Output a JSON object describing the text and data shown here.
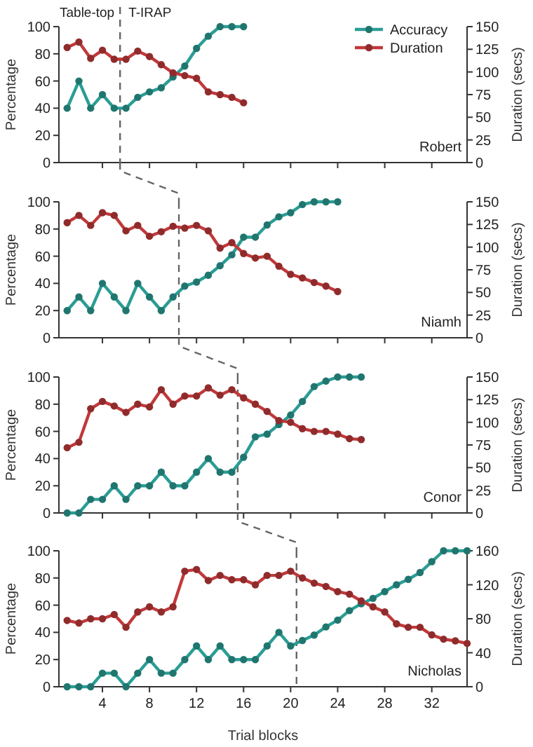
{
  "chart_data": [
    {
      "type": "line",
      "ylabel": "Percentage",
      "y2label": "Duration (secs)",
      "xlim": [
        0.3,
        35
      ],
      "xticks": [
        4,
        8,
        12,
        16,
        20,
        24,
        28,
        32
      ],
      "ylim": [
        0,
        100
      ],
      "yticks": [
        0,
        20,
        40,
        60,
        80,
        100
      ],
      "y2lim": [
        0,
        150
      ],
      "y2ticks": [
        0,
        25,
        50,
        75,
        100,
        125,
        150
      ],
      "tick_labels": "y",
      "legend": "top right",
      "marker": "circle",
      "line_style": "solid",
      "ref_lines": [
        {
          "axis": "x",
          "value": 5.5,
          "line_style": "dashed",
          "color": "#666666"
        }
      ],
      "annotations": [
        "Table-top",
        "T-IRAP",
        "Robert"
      ],
      "series": [
        {
          "name": "Accuracy",
          "color": "#2a9d94",
          "x": [
            1,
            2,
            3,
            4,
            5,
            6,
            7,
            8,
            9,
            10,
            11,
            12,
            13,
            14,
            15,
            16
          ],
          "values": [
            40,
            60,
            40,
            50,
            40,
            40,
            48,
            52,
            55,
            63,
            71,
            84,
            93,
            100,
            100,
            100
          ]
        },
        {
          "name": "Duration",
          "color": "#c0393b",
          "axis": "y2",
          "x": [
            1,
            2,
            3,
            4,
            5,
            6,
            7,
            8,
            9,
            10,
            11,
            12,
            13,
            14,
            15,
            16
          ],
          "values": [
            127,
            133,
            115,
            124,
            114,
            114,
            123,
            117,
            108,
            99,
            96,
            93,
            78,
            75,
            72,
            66
          ]
        }
      ]
    },
    {
      "type": "line",
      "ylabel": "Percentage",
      "y2label": "Duration (secs)",
      "xlim": [
        0.3,
        35
      ],
      "xticks": [
        4,
        8,
        12,
        16,
        20,
        24,
        28,
        32
      ],
      "ylim": [
        0,
        100
      ],
      "yticks": [
        0,
        20,
        40,
        60,
        80,
        100
      ],
      "y2lim": [
        0,
        150
      ],
      "y2ticks": [
        0,
        25,
        50,
        75,
        100,
        125,
        150
      ],
      "tick_labels": "y",
      "marker": "circle",
      "line_style": "solid",
      "ref_lines": [
        {
          "axis": "x",
          "value": 10.5,
          "line_style": "dashed",
          "color": "#666666"
        }
      ],
      "annotations": [
        "Niamh"
      ],
      "series": [
        {
          "color": "#2a9d94",
          "x": [
            1,
            2,
            3,
            4,
            5,
            6,
            7,
            8,
            9,
            10,
            11,
            12,
            13,
            14,
            15,
            16,
            17,
            18,
            19,
            20,
            21,
            22,
            23,
            24
          ],
          "values": [
            20,
            30,
            20,
            40,
            30,
            20,
            40,
            30,
            20,
            30,
            38,
            41,
            46,
            53,
            61,
            74,
            74,
            83,
            89,
            92,
            98,
            100,
            100,
            100
          ]
        },
        {
          "color": "#c0393b",
          "axis": "y2",
          "x": [
            1,
            2,
            3,
            4,
            5,
            6,
            7,
            8,
            9,
            10,
            11,
            12,
            13,
            14,
            15,
            16,
            17,
            18,
            19,
            20,
            21,
            22,
            23,
            24
          ],
          "values": [
            127,
            135,
            124,
            138,
            135,
            118,
            124,
            112,
            117,
            123,
            121,
            124,
            118,
            99,
            105,
            93,
            88,
            90,
            79,
            70,
            66,
            61,
            57,
            51
          ]
        }
      ]
    },
    {
      "type": "line",
      "ylabel": "Percentage",
      "y2label": "Duration (secs)",
      "xlim": [
        0.3,
        35
      ],
      "xticks": [
        4,
        8,
        12,
        16,
        20,
        24,
        28,
        32
      ],
      "ylim": [
        0,
        100
      ],
      "yticks": [
        0,
        20,
        40,
        60,
        80,
        100
      ],
      "y2lim": [
        0,
        150
      ],
      "y2ticks": [
        0,
        25,
        50,
        75,
        100,
        125,
        150
      ],
      "tick_labels": "y",
      "marker": "circle",
      "line_style": "solid",
      "ref_lines": [
        {
          "axis": "x",
          "value": 15.5,
          "line_style": "dashed",
          "color": "#666666"
        }
      ],
      "annotations": [
        "Conor"
      ],
      "series": [
        {
          "color": "#2a9d94",
          "x": [
            1,
            2,
            3,
            4,
            5,
            6,
            7,
            8,
            9,
            10,
            11,
            12,
            13,
            14,
            15,
            16,
            17,
            18,
            19,
            20,
            21,
            22,
            23,
            24,
            25,
            26
          ],
          "values": [
            0,
            0,
            10,
            10,
            20,
            10,
            20,
            20,
            30,
            20,
            20,
            30,
            40,
            30,
            30,
            41,
            56,
            58,
            65,
            72,
            82,
            93,
            97,
            100,
            100,
            100
          ]
        },
        {
          "color": "#c0393b",
          "axis": "y2",
          "x": [
            1,
            2,
            3,
            4,
            5,
            6,
            7,
            8,
            9,
            10,
            11,
            12,
            13,
            14,
            15,
            16,
            17,
            18,
            19,
            20,
            21,
            22,
            23,
            24,
            25,
            26
          ],
          "values": [
            72,
            78,
            115,
            123,
            118,
            111,
            120,
            117,
            136,
            120,
            129,
            129,
            138,
            130,
            136,
            127,
            120,
            112,
            102,
            100,
            93,
            90,
            90,
            87,
            82,
            81
          ]
        }
      ]
    },
    {
      "type": "line",
      "xlabel": "Trial blocks",
      "ylabel": "Percentage",
      "y2label": "Duration (secs)",
      "xlim": [
        0.3,
        35
      ],
      "xticks": [
        4,
        8,
        12,
        16,
        20,
        24,
        28,
        32
      ],
      "ylim": [
        0,
        100
      ],
      "yticks": [
        0,
        20,
        40,
        60,
        80,
        100
      ],
      "y2lim": [
        0,
        160
      ],
      "y2ticks": [
        0,
        40,
        80,
        120,
        160
      ],
      "marker": "circle",
      "line_style": "solid",
      "ref_lines": [
        {
          "axis": "x",
          "value": 20.5,
          "line_style": "dashed",
          "color": "#666666"
        }
      ],
      "annotations": [
        "Nicholas"
      ],
      "series": [
        {
          "color": "#2a9d94",
          "x": [
            1,
            2,
            3,
            4,
            5,
            6,
            7,
            8,
            9,
            10,
            11,
            12,
            13,
            14,
            15,
            16,
            17,
            18,
            19,
            20,
            21,
            22,
            23,
            24,
            25,
            26,
            27,
            28,
            29,
            30,
            31,
            32,
            33,
            34,
            35
          ],
          "values": [
            0,
            0,
            0,
            10,
            10,
            0,
            10,
            20,
            10,
            10,
            20,
            30,
            20,
            30,
            20,
            20,
            20,
            30,
            40,
            30,
            34,
            38,
            44,
            49,
            56,
            61,
            65,
            70,
            75,
            79,
            84,
            92,
            100,
            100,
            100
          ]
        },
        {
          "color": "#c0393b",
          "axis": "y2",
          "x": [
            1,
            2,
            3,
            4,
            5,
            6,
            7,
            8,
            9,
            10,
            11,
            12,
            13,
            14,
            15,
            16,
            17,
            18,
            19,
            20,
            21,
            22,
            23,
            24,
            25,
            26,
            27,
            28,
            29,
            30,
            31,
            32,
            33,
            34,
            35
          ],
          "values": [
            78,
            75,
            80,
            80,
            85,
            70,
            88,
            94,
            88,
            94,
            136,
            138,
            125,
            131,
            126,
            126,
            120,
            131,
            131,
            136,
            128,
            122,
            118,
            112,
            109,
            101,
            94,
            88,
            74,
            70,
            70,
            61,
            56,
            54,
            51
          ]
        }
      ]
    }
  ]
}
